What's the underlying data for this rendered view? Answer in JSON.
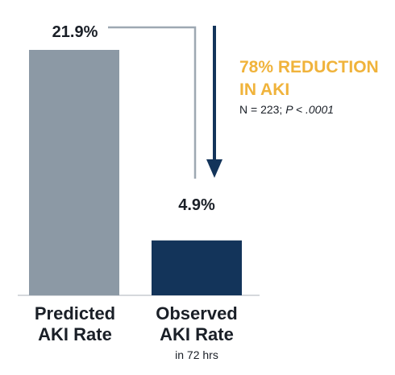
{
  "colors": {
    "predicted_bar": "#8c99a5",
    "observed_bar": "#13345a",
    "accent": "#f0b33b",
    "text": "#1a1f27",
    "connector": "#9ea8b2",
    "axis": "#c7ccd1"
  },
  "chart_data": {
    "type": "bar",
    "categories": [
      "Predicted AKI Rate",
      "Observed AKI Rate"
    ],
    "values": [
      21.9,
      4.9
    ],
    "unit": "%",
    "value_labels": [
      "21.9%",
      "4.9%"
    ],
    "category_lines": [
      [
        "Predicted",
        "AKI Rate"
      ],
      [
        "Observed",
        "AKI Rate"
      ]
    ],
    "category_notes": [
      "",
      "in 72 hrs"
    ],
    "ylim": [
      0,
      21.9
    ],
    "grid": false,
    "annotation": {
      "title_lines": [
        "78% REDUCTION",
        "IN AKI"
      ],
      "stat_prefix": "N = 223; ",
      "stat_italic": "P < .0001"
    }
  }
}
